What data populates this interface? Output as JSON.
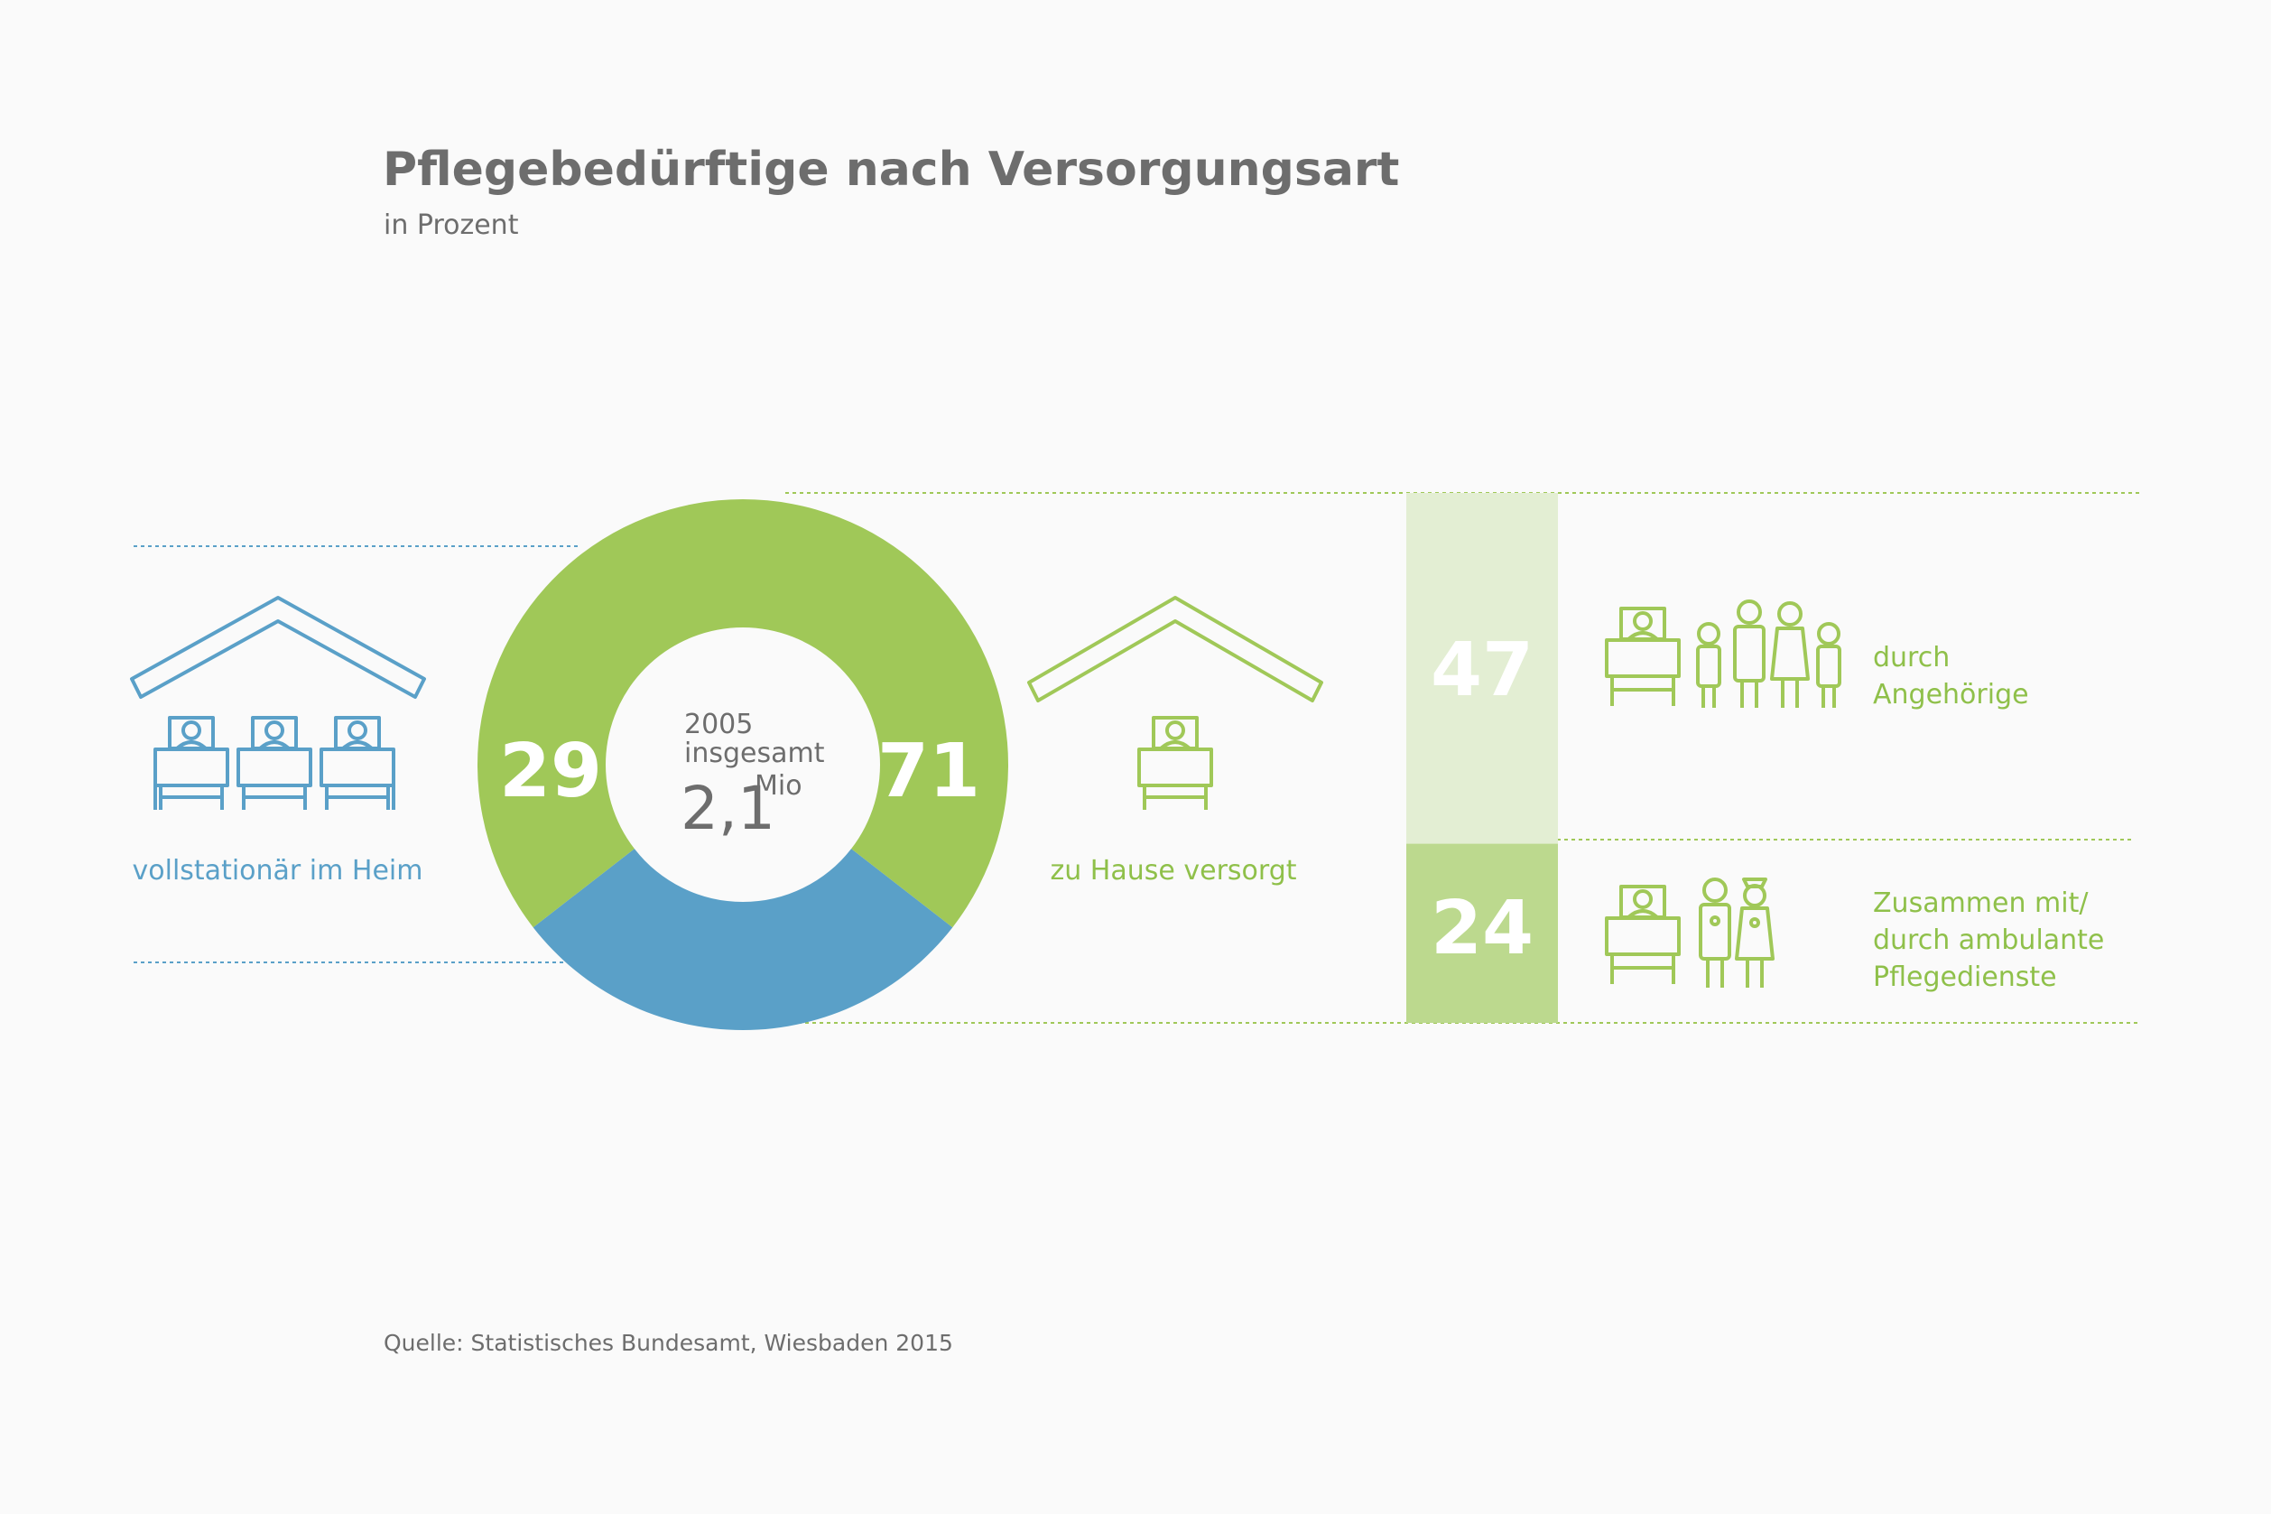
{
  "title": "Pflegebedürftige nach Versorgungsart",
  "subtitle": "in Prozent",
  "source": "Quelle: Statistisches Bundesamt, Wiesbaden 2015",
  "colors": {
    "blue": "#5aa0c8",
    "green": "#a0c858",
    "light_green": "#e3eed3",
    "mid_green": "#bcd98e",
    "text": "#6d6d6d"
  },
  "icons": {
    "left": "nursing-home-beds-icon",
    "middle": "home-bed-icon",
    "relatives": "bed-with-family-icon",
    "ambulant": "bed-with-nurses-icon"
  },
  "chart_data": [
    {
      "type": "pie",
      "center": {
        "year": "2005",
        "label": "insgesamt",
        "total": "2,1",
        "unit": "Mio"
      },
      "slices": [
        {
          "label": "vollstationär im Heim",
          "value": 29
        },
        {
          "label": "zu Hause versorgt",
          "value": 71
        }
      ]
    },
    {
      "type": "bar",
      "stacked": true,
      "categories": [
        "durch\nAngehörige",
        "Zusammen mit/\ndurch ambulante\nPflegedienste"
      ],
      "values": [
        47,
        24
      ]
    }
  ]
}
